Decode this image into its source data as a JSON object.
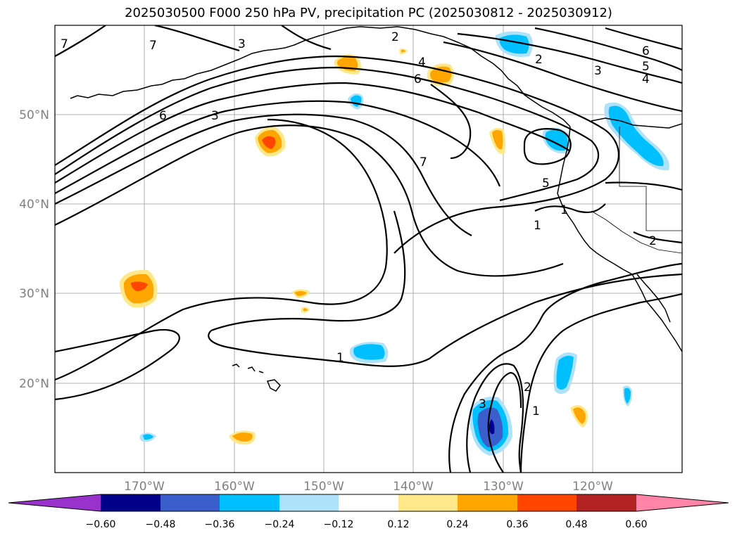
{
  "title": "2025030500 F000 250 hPa PV, precipitation PC (2025030812 - 2025030912)",
  "map": {
    "lon_labels": [
      "170°W",
      "160°W",
      "150°W",
      "140°W",
      "130°W",
      "120°W"
    ],
    "lat_labels": [
      "50°N",
      "40°N",
      "30°N",
      "20°N"
    ],
    "pv_contour_labels": [
      "7",
      "7",
      "3",
      "2",
      "4",
      "6",
      "2",
      "6",
      "5",
      "4",
      "3",
      "6",
      "3",
      "7",
      "5",
      "1",
      "1",
      "2",
      "1",
      "2",
      "1",
      "3"
    ]
  },
  "colorbar": {
    "ticks": [
      "−0.60",
      "−0.48",
      "−0.36",
      "−0.24",
      "−0.12",
      "0.12",
      "0.24",
      "0.36",
      "0.48",
      "0.60"
    ],
    "colors": [
      "#9932cc",
      "#00008b",
      "#3a5fcd",
      "#00bfff",
      "#aee2fa",
      "#ffffff",
      "#ffe88a",
      "#ffa500",
      "#ff4500",
      "#b22222",
      "#ff85a8"
    ]
  }
}
